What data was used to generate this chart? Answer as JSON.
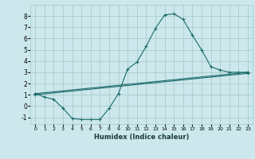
{
  "xlabel": "Humidex (Indice chaleur)",
  "background_color": "#cce8ec",
  "grid_color": "#aacccc",
  "line_color": "#1a6b6b",
  "xlim": [
    -0.5,
    23.5
  ],
  "ylim": [
    -1.6,
    9.0
  ],
  "xticks": [
    0,
    1,
    2,
    3,
    4,
    5,
    6,
    7,
    8,
    9,
    10,
    11,
    12,
    13,
    14,
    15,
    16,
    17,
    18,
    19,
    20,
    21,
    22,
    23
  ],
  "yticks": [
    -1,
    0,
    1,
    2,
    3,
    4,
    5,
    6,
    7,
    8
  ],
  "line1_x": [
    0,
    1,
    2,
    3,
    4,
    5,
    6,
    7,
    8,
    9,
    10,
    11,
    12,
    13,
    14,
    15,
    16,
    17,
    18,
    19,
    20,
    21,
    22,
    23
  ],
  "line1_y": [
    1.1,
    0.8,
    0.6,
    -0.2,
    -1.1,
    -1.2,
    -1.2,
    -1.2,
    -0.2,
    1.1,
    3.3,
    3.9,
    5.3,
    6.9,
    8.1,
    8.2,
    7.7,
    6.3,
    5.0,
    3.5,
    3.2,
    3.0,
    3.0,
    3.0
  ],
  "line2_x": [
    0,
    23
  ],
  "line2_y": [
    1.1,
    3.0
  ],
  "line3_x": [
    0,
    23
  ],
  "line3_y": [
    1.0,
    2.9
  ]
}
